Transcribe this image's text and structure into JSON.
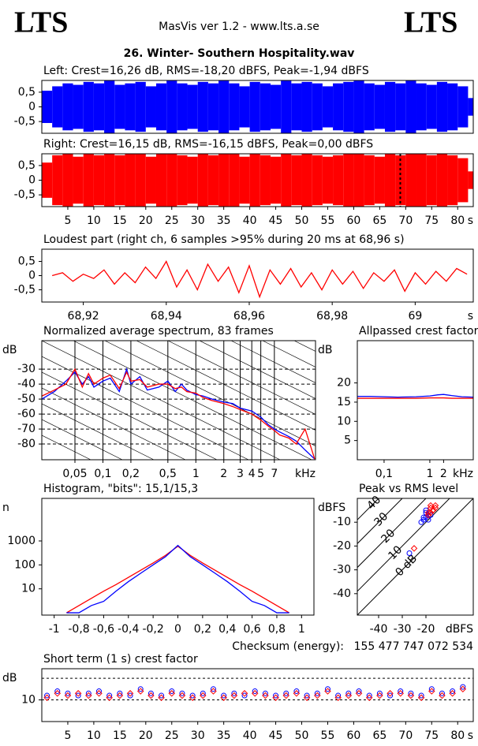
{
  "header": {
    "logo_left": "LTS",
    "title": "MasVis ver 1.2 - www.lts.a.se",
    "logo_right": "LTS",
    "file": "26. Winter- Southern Hospitality.wav"
  },
  "chart_data": [
    {
      "type": "envelope",
      "title": "Left: Crest=16,26 dB, RMS=-18,20 dBFS, Peak=-1,94 dBFS",
      "color": "#0000ff",
      "x": [
        0,
        2,
        4,
        6,
        8,
        10,
        12,
        14,
        16,
        18,
        20,
        22,
        24,
        26,
        28,
        30,
        32,
        34,
        36,
        38,
        40,
        42,
        44,
        46,
        48,
        50,
        52,
        54,
        56,
        58,
        60,
        62,
        64,
        66,
        68,
        70,
        72,
        74,
        76,
        78,
        80,
        82
      ],
      "values": [
        0.55,
        0.7,
        0.8,
        0.75,
        0.85,
        0.8,
        0.9,
        0.75,
        0.8,
        0.85,
        0.7,
        0.8,
        0.9,
        0.8,
        0.75,
        0.85,
        0.8,
        0.9,
        0.8,
        0.7,
        0.85,
        0.8,
        0.75,
        0.9,
        0.8,
        0.85,
        0.8,
        0.7,
        0.8,
        0.85,
        0.9,
        0.8,
        0.75,
        0.85,
        0.8,
        0.9,
        0.8,
        0.75,
        0.85,
        0.8,
        0.7,
        0.3
      ],
      "xlim": [
        0,
        83
      ],
      "ylim": [
        -0.9,
        0.9
      ],
      "yticks": [
        {
          "value": 0.5,
          "label": "0,5"
        },
        0,
        {
          "value": -0.5,
          "label": "-0,5"
        }
      ]
    },
    {
      "type": "envelope",
      "title": "Right: Crest=16,15 dB, RMS=-16,15 dBFS, Peak=0,00 dBFS",
      "color": "#ff0000",
      "x": [
        0,
        2,
        4,
        6,
        8,
        10,
        12,
        14,
        16,
        18,
        20,
        22,
        24,
        26,
        28,
        30,
        32,
        34,
        36,
        38,
        40,
        42,
        44,
        46,
        48,
        50,
        52,
        54,
        56,
        58,
        60,
        62,
        64,
        66,
        68,
        70,
        72,
        74,
        76,
        78,
        80,
        82
      ],
      "values": [
        0.6,
        0.85,
        0.9,
        0.8,
        0.95,
        0.85,
        0.9,
        0.85,
        0.9,
        0.95,
        0.8,
        0.9,
        0.95,
        0.85,
        0.8,
        0.9,
        0.85,
        0.95,
        0.9,
        0.8,
        0.9,
        0.85,
        0.8,
        0.95,
        0.85,
        0.9,
        0.85,
        0.8,
        0.85,
        0.9,
        0.95,
        0.85,
        0.8,
        0.9,
        0.85,
        1,
        0.9,
        0.85,
        0.9,
        0.85,
        0.75,
        0.3
      ],
      "marker": 68.96,
      "xlim": [
        0,
        83
      ],
      "ylim": [
        -0.9,
        0.9
      ],
      "yticks": [
        {
          "value": 0.5,
          "label": "0,5"
        },
        0,
        {
          "value": -0.5,
          "label": "-0,5"
        }
      ],
      "xticks": [
        5,
        10,
        15,
        20,
        25,
        30,
        35,
        40,
        45,
        50,
        55,
        60,
        65,
        70,
        75,
        80
      ],
      "x_unit": "s"
    },
    {
      "type": "line",
      "title": "Loudest part (right ch, 6 samples >95% during 20 ms at 68,96 s)",
      "x": [
        68.9125,
        68.915,
        68.9175,
        68.92,
        68.9225,
        68.925,
        68.9275,
        68.93,
        68.9325,
        68.935,
        68.9375,
        68.94,
        68.9425,
        68.945,
        68.9475,
        68.95,
        68.9525,
        68.955,
        68.9575,
        68.96,
        68.9625,
        68.965,
        68.9675,
        68.97,
        68.9725,
        68.975,
        68.9775,
        68.98,
        68.9825,
        68.985,
        68.9875,
        68.99,
        68.9925,
        68.995,
        68.9975,
        69,
        69.0025,
        69.005,
        69.0075,
        69.01,
        69.0125
      ],
      "series": [
        {
          "color": "#ff0000",
          "values": [
            0,
            0.1,
            -0.2,
            0.05,
            -0.1,
            0.2,
            -0.3,
            0.1,
            -0.25,
            0.3,
            -0.1,
            0.5,
            -0.4,
            0.2,
            -0.5,
            0.4,
            -0.2,
            0.3,
            -0.6,
            0.35,
            -0.75,
            0.2,
            -0.3,
            0.25,
            -0.4,
            0.1,
            -0.5,
            0.2,
            -0.3,
            0.15,
            -0.45,
            0.1,
            -0.2,
            0.2,
            -0.55,
            0.1,
            -0.3,
            0.15,
            -0.2,
            0.25,
            0.05
          ]
        }
      ],
      "xlim": [
        68.91,
        69.014
      ],
      "ylim": [
        -0.93,
        0.93
      ],
      "yticks": [
        {
          "value": 0.5,
          "label": "0,5"
        },
        0,
        {
          "value": -0.5,
          "label": "-0,5"
        }
      ],
      "xticks": [
        {
          "value": 68.92,
          "label": "68,92"
        },
        {
          "value": 68.94,
          "label": "68,94"
        },
        {
          "value": 68.96,
          "label": "68,96"
        },
        {
          "value": 68.98,
          "label": "68,98"
        },
        69
      ],
      "x_unit": "s"
    },
    {
      "type": "line",
      "title": "Normalized average spectrum, 83 frames",
      "y_label": "dB",
      "x_unit": "kHz",
      "xscale": "log",
      "grid": true,
      "x": [
        0.022,
        0.03,
        0.04,
        0.05,
        0.06,
        0.07,
        0.08,
        0.1,
        0.12,
        0.15,
        0.18,
        0.2,
        0.25,
        0.3,
        0.4,
        0.5,
        0.6,
        0.7,
        0.8,
        1,
        1.2,
        1.5,
        2,
        2.5,
        3,
        4,
        5,
        6,
        7,
        8,
        10,
        12,
        15,
        19
      ],
      "series": [
        {
          "color": "#0000ff",
          "values": [
            -50,
            -45,
            -38,
            -32,
            -40,
            -35,
            -42,
            -38,
            -36,
            -45,
            -30,
            -40,
            -35,
            -44,
            -42,
            -38,
            -45,
            -40,
            -44,
            -47,
            -48,
            -50,
            -52,
            -53,
            -56,
            -58,
            -62,
            -67,
            -70,
            -72,
            -75,
            -78,
            -84,
            -90
          ]
        },
        {
          "color": "#ff0000",
          "values": [
            -48,
            -44,
            -40,
            -30,
            -42,
            -33,
            -40,
            -36,
            -34,
            -43,
            -32,
            -38,
            -37,
            -42,
            -40,
            -40,
            -43,
            -42,
            -45,
            -46,
            -49,
            -51,
            -53,
            -55,
            -57,
            -60,
            -64,
            -68,
            -71,
            -74,
            -76,
            -80,
            -70,
            -90
          ]
        }
      ],
      "xlim": [
        0.022,
        19.4
      ],
      "ylim": [
        -90.5,
        -11
      ],
      "yticks": [
        -30,
        -40,
        -50,
        -60,
        -70,
        -80
      ],
      "xticks": [
        {
          "value": 0.05,
          "label": "0,05"
        },
        {
          "value": 0.1,
          "label": "0,1"
        },
        {
          "value": 0.2,
          "label": "0,2"
        },
        {
          "value": 0.5,
          "label": "0,5"
        },
        1,
        2,
        3,
        4,
        5,
        7
      ]
    },
    {
      "type": "line",
      "title": "Allpassed crest factor",
      "y_label": "dB",
      "x_unit": "kHz",
      "xscale": "log",
      "x": [
        0.026,
        0.05,
        0.1,
        0.2,
        0.5,
        1,
        1.5,
        2,
        3,
        5,
        8.9
      ],
      "series": [
        {
          "color": "#0000ff",
          "values": [
            16.5,
            16.5,
            16.4,
            16.3,
            16.4,
            16.6,
            16.9,
            17,
            16.7,
            16.4,
            16.3
          ]
        },
        {
          "color": "#ff0000",
          "values": [
            16,
            16,
            16,
            16,
            16,
            16.1,
            16.1,
            16.1,
            16,
            16,
            16
          ]
        }
      ],
      "xlim": [
        0.026,
        8.9
      ],
      "ylim": [
        0,
        31
      ],
      "yticks": [
        20,
        15,
        10,
        5
      ],
      "xticks": [
        {
          "value": 0.1,
          "label": "0,1"
        },
        1,
        2
      ]
    },
    {
      "type": "line",
      "title": "Histogram, \"bits\": 15,1/15,3",
      "y_label": "n",
      "yscale": "log",
      "x": [
        -0.9,
        -0.8,
        -0.7,
        -0.6,
        -0.5,
        -0.4,
        -0.3,
        -0.2,
        -0.1,
        0,
        0.1,
        0.2,
        0.3,
        0.4,
        0.5,
        0.6,
        0.7,
        0.8,
        0.9
      ],
      "series": [
        {
          "color": "#ff0000",
          "values": [
            1,
            2,
            4,
            8,
            15,
            30,
            60,
            120,
            250,
            600,
            250,
            120,
            60,
            30,
            15,
            8,
            4,
            2,
            1
          ]
        },
        {
          "color": "#0000ff",
          "values": [
            1,
            1,
            2,
            3,
            8,
            20,
            45,
            100,
            220,
            650,
            220,
            100,
            45,
            20,
            8,
            3,
            2,
            1,
            1
          ]
        }
      ],
      "xlim": [
        -1.1,
        1.1
      ],
      "ylim": [
        0.8,
        60000
      ],
      "yticks": [
        1000,
        100,
        10
      ],
      "xticks": [
        -1,
        {
          "value": -0.8,
          "label": "-0,8"
        },
        {
          "value": -0.6,
          "label": "-0,6"
        },
        {
          "value": -0.4,
          "label": "-0,4"
        },
        {
          "value": -0.2,
          "label": "-0,2"
        },
        0,
        {
          "value": 0.2,
          "label": "0,2"
        },
        {
          "value": 0.4,
          "label": "0,4"
        },
        {
          "value": 0.6,
          "label": "0,6"
        },
        {
          "value": 0.8,
          "label": "0,8"
        },
        1
      ]
    },
    {
      "type": "scatter",
      "title": "Peak vs RMS level",
      "y_label": "dBFS",
      "x_unit": "dBFS",
      "series": [
        {
          "color": "#0000ff",
          "marker": "circle",
          "x": [
            -20,
            -21,
            -19,
            -22,
            -20,
            -18,
            -21,
            -19,
            -27,
            -20
          ],
          "values": [
            -8,
            -9,
            -7,
            -10,
            -6,
            -7,
            -8,
            -9,
            -23,
            -5
          ]
        },
        {
          "color": "#ff0000",
          "marker": "diamond",
          "x": [
            -18,
            -17,
            -19,
            -16,
            -18,
            -17,
            -19,
            -16,
            -25,
            -18
          ],
          "values": [
            -6,
            -5,
            -7,
            -4,
            -3,
            -5,
            -6,
            -3,
            -21,
            -4
          ]
        }
      ],
      "diagonals": [
        {
          "value": 40,
          "label": "40"
        },
        {
          "value": 30,
          "label": "30"
        },
        {
          "value": 20,
          "label": "20"
        },
        {
          "value": 10,
          "label": "10"
        },
        {
          "value": 0,
          "label": "0 dB"
        }
      ],
      "xlim": [
        -49,
        0
      ],
      "ylim": [
        -49,
        0
      ],
      "yticks": [
        -10,
        -20,
        -30,
        -40
      ],
      "xticks": [
        -40,
        -30,
        -20
      ]
    },
    {
      "type": "scatter",
      "title": "Short term (1 s) crest factor",
      "y_label": "dB",
      "x_unit": "s",
      "checksum_label": "Checksum (energy):",
      "checksum": "155 477 747 072 534",
      "x": [
        1,
        3,
        5,
        7,
        9,
        11,
        13,
        15,
        17,
        19,
        21,
        23,
        25,
        27,
        29,
        31,
        33,
        35,
        37,
        39,
        41,
        43,
        45,
        47,
        49,
        51,
        53,
        55,
        57,
        59,
        61,
        63,
        65,
        67,
        69,
        71,
        73,
        75,
        77,
        79,
        81
      ],
      "series": [
        {
          "color": "#0000ff",
          "marker": "circle",
          "values": [
            12,
            14,
            13,
            12,
            13,
            14,
            12,
            13,
            12,
            15,
            13,
            12,
            14,
            13,
            12,
            13,
            15,
            12,
            13,
            12,
            14,
            13,
            12,
            13,
            14,
            12,
            13,
            15,
            12,
            13,
            14,
            12,
            13,
            12,
            14,
            13,
            12,
            15,
            13,
            14,
            16
          ]
        },
        {
          "color": "#ff0000",
          "marker": "diamond",
          "values": [
            11,
            13,
            12,
            13,
            12,
            13,
            11,
            12,
            13,
            14,
            12,
            11,
            13,
            12,
            11,
            12,
            14,
            11,
            12,
            13,
            13,
            12,
            11,
            12,
            13,
            11,
            12,
            14,
            11,
            12,
            13,
            11,
            12,
            13,
            13,
            12,
            11,
            14,
            12,
            13,
            15
          ]
        }
      ],
      "reference_lines": [
        10,
        20
      ],
      "xlim": [
        0,
        83
      ],
      "ylim": [
        0,
        24.4
      ],
      "yticks": [
        10
      ],
      "xticks": [
        5,
        10,
        15,
        20,
        25,
        30,
        35,
        40,
        45,
        50,
        55,
        60,
        65,
        70,
        75,
        80
      ]
    }
  ]
}
